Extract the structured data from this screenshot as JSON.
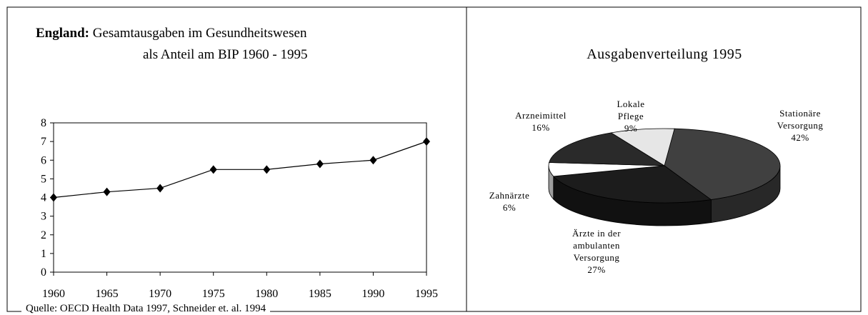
{
  "chart_data": [
    {
      "type": "line",
      "title_lead": "England:",
      "title": "Gesamtausgaben im Gesundheitswesen",
      "subtitle": "als Anteil am BIP 1960 - 1995",
      "x": [
        1960,
        1965,
        1970,
        1975,
        1980,
        1985,
        1990,
        1995
      ],
      "values": [
        4,
        4.3,
        4.5,
        5.5,
        5.5,
        5.8,
        6,
        7
      ],
      "color": "#000000",
      "xlim": [
        1960,
        1995
      ],
      "xticks": [
        1960,
        1965,
        1970,
        1975,
        1980,
        1985,
        1990,
        1995
      ],
      "ylim": [
        0,
        8
      ],
      "yticks": [
        0,
        1,
        2,
        3,
        4,
        5,
        6,
        7,
        8
      ],
      "source": "Quelle: OECD Health Data 1997, Schneider et. al. 1994"
    },
    {
      "type": "pie",
      "title": "Ausgabenverteilung 1995",
      "categories": [
        "Stationäre Versorgung",
        "Ärzte in der ambulanten Versorgung",
        "Zahnärzte",
        "Arzneimittel",
        "Lokale Pflege"
      ],
      "values": [
        42,
        27,
        6,
        16,
        9
      ],
      "value_labels": [
        "42%",
        "27%",
        "6%",
        "16%",
        "9%"
      ],
      "colors": [
        "#404040",
        "#1c1c1c",
        "#ffffff",
        "#2a2a2a",
        "#e6e6e6"
      ]
    }
  ]
}
